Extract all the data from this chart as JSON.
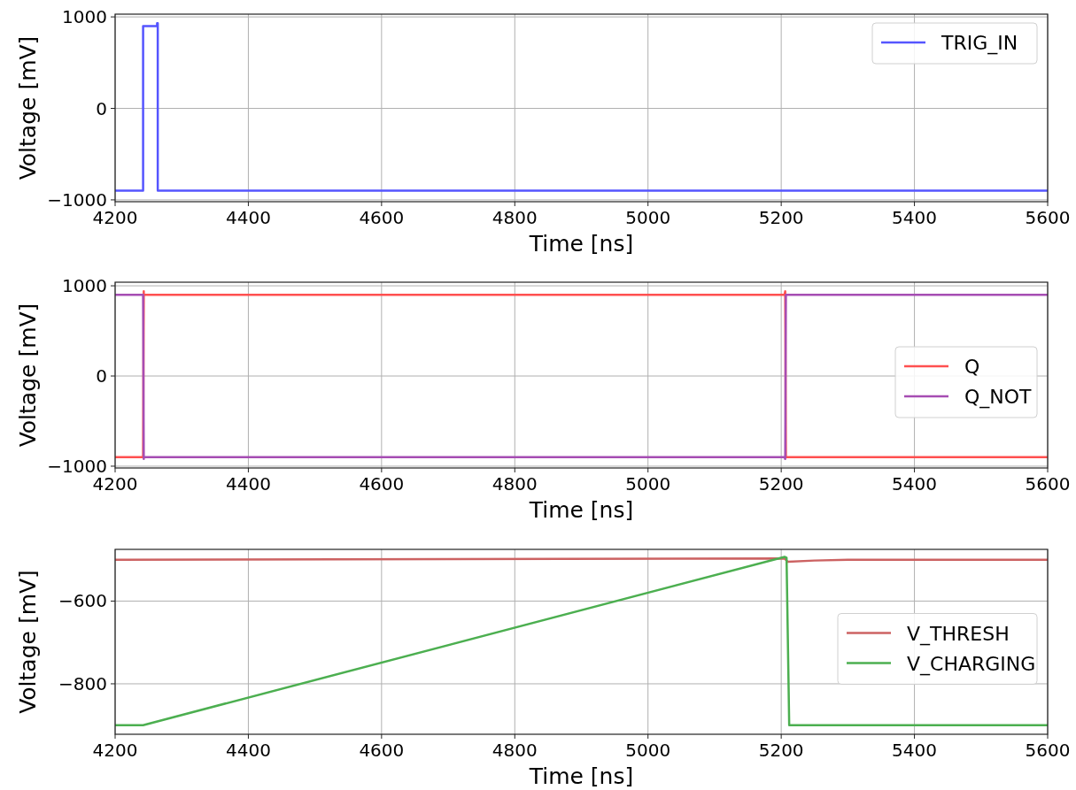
{
  "chart_data": [
    {
      "type": "line",
      "xlabel": "Time [ns]",
      "ylabel": "Voltage [mV]",
      "xlim": [
        4200,
        5600
      ],
      "ylim": [
        -1020,
        1030
      ],
      "xticks": [
        4200,
        4400,
        4600,
        4800,
        5000,
        5200,
        5400,
        5600
      ],
      "yticks": [
        -1000,
        0,
        1000
      ],
      "grid": true,
      "legend": "top right",
      "series": [
        {
          "name": "TRIG_IN",
          "color": "#5555ff",
          "x": [
            4200,
            4242,
            4242,
            4263,
            4263,
            4264,
            4264,
            5600
          ],
          "values": [
            -900,
            -900,
            900,
            900,
            930,
            930,
            -900,
            -900
          ]
        }
      ]
    },
    {
      "type": "line",
      "xlabel": "Time [ns]",
      "ylabel": "Voltage [mV]",
      "xlim": [
        4200,
        5600
      ],
      "ylim": [
        -1020,
        1040
      ],
      "xticks": [
        4200,
        4400,
        4600,
        4800,
        5000,
        5200,
        5400,
        5600
      ],
      "yticks": [
        -1000,
        0,
        1000
      ],
      "grid": true,
      "legend": "right",
      "series": [
        {
          "name": "Q",
          "color": "#ff5050",
          "x": [
            4200,
            4242,
            4243,
            4243,
            5205,
            5206,
            5207,
            5600
          ],
          "values": [
            -900,
            -900,
            940,
            900,
            900,
            940,
            -900,
            -900
          ]
        },
        {
          "name": "Q_NOT",
          "color": "#a64db3",
          "x": [
            4200,
            4242,
            4243,
            4243,
            5205,
            5206,
            5207,
            5600
          ],
          "values": [
            900,
            900,
            -920,
            -900,
            -900,
            -920,
            900,
            900
          ]
        }
      ]
    },
    {
      "type": "line",
      "xlabel": "Time [ns]",
      "ylabel": "Voltage [mV]",
      "xlim": [
        4200,
        5600
      ],
      "ylim": [
        -922,
        -475
      ],
      "xticks": [
        4200,
        4400,
        4600,
        4800,
        5000,
        5200,
        5400,
        5600
      ],
      "yticks": [
        -800,
        -600
      ],
      "grid": true,
      "legend": "right",
      "series": [
        {
          "name": "V_THRESH",
          "color": "#cc6262",
          "x": [
            4200,
            5205,
            5210,
            5250,
            5300,
            5600
          ],
          "values": [
            -500,
            -497,
            -505,
            -502,
            -500,
            -500
          ]
        },
        {
          "name": "V_CHARGING",
          "color": "#4caf50",
          "x": [
            4200,
            4242,
            5205,
            5208,
            5212,
            5600
          ],
          "values": [
            -900,
            -900,
            -493,
            -495,
            -900,
            -900
          ]
        }
      ]
    }
  ]
}
